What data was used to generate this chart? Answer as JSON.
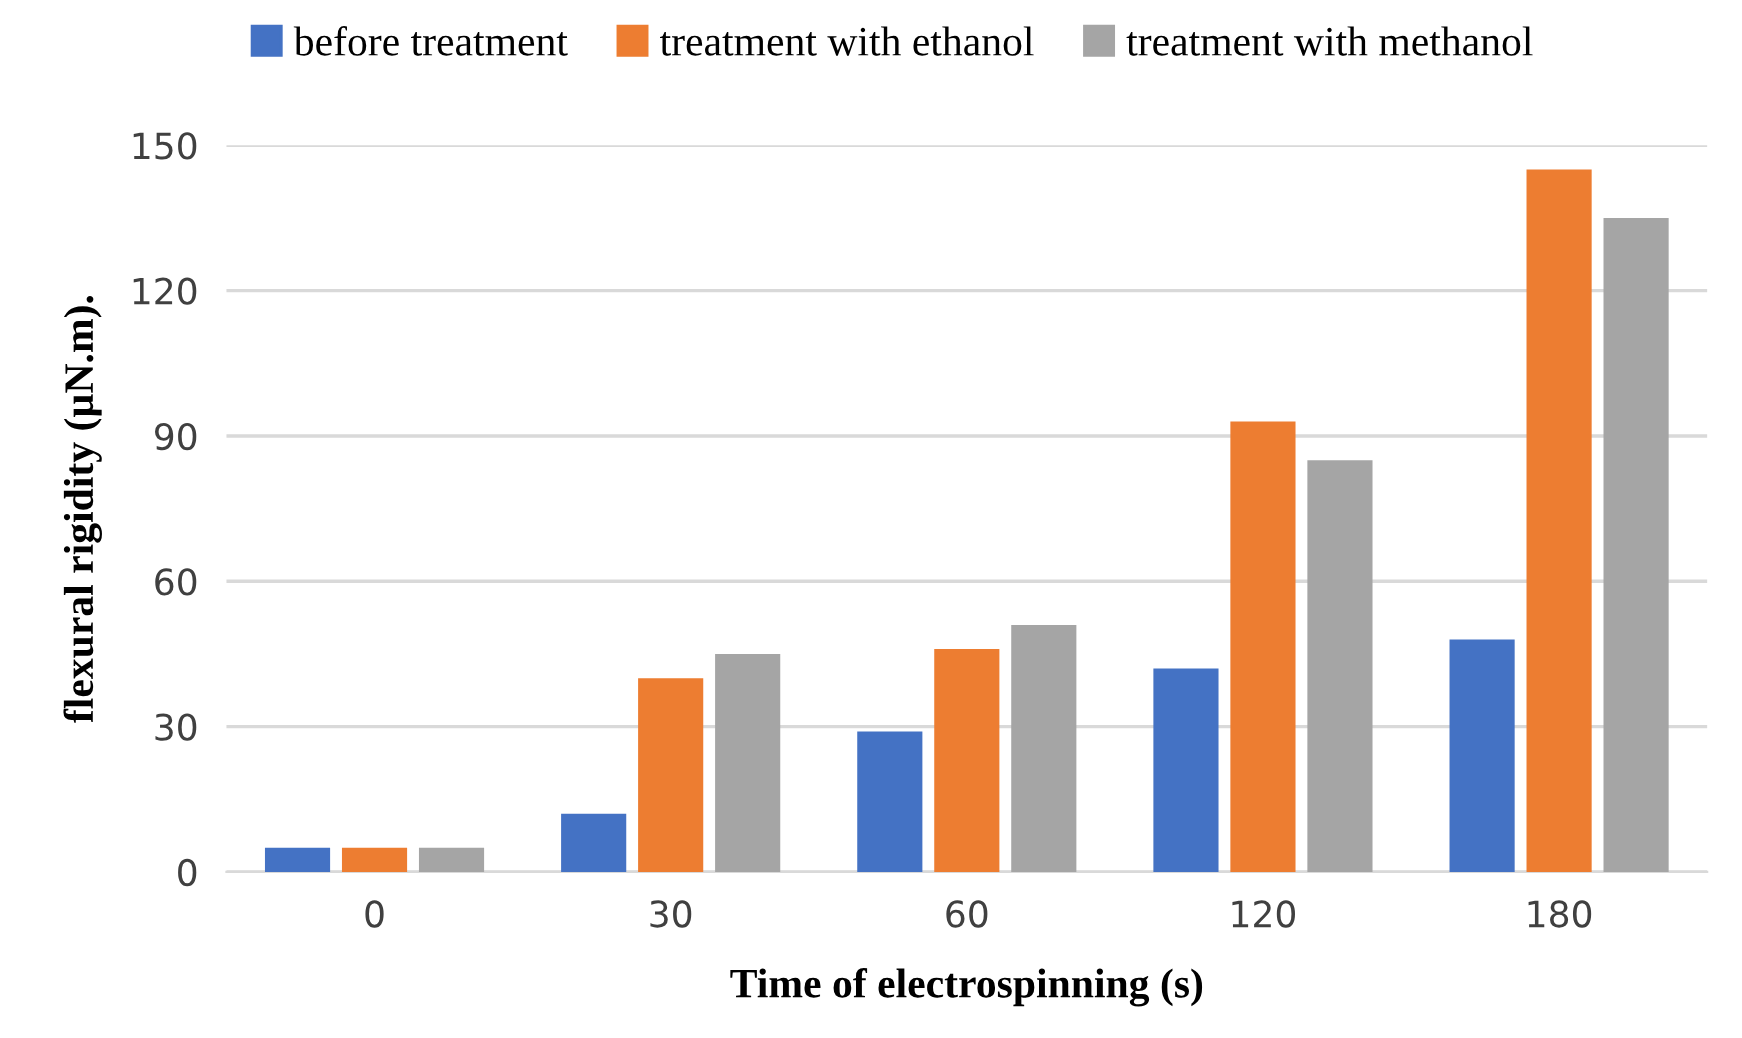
{
  "chart_data": {
    "type": "bar",
    "xlabel": "Time of electrospinning (s)",
    "ylabel": "flexural rigidity (µN.m).",
    "categories": [
      "0",
      "30",
      "60",
      "120",
      "180"
    ],
    "series": [
      {
        "name": "before treatment",
        "color": "#4472c4",
        "values": [
          5,
          12,
          29,
          42,
          48
        ]
      },
      {
        "name": "treatment with ethanol",
        "color": "#ed7d31",
        "values": [
          5,
          40,
          46,
          93,
          145
        ]
      },
      {
        "name": "treatment with methanol",
        "color": "#a5a5a5",
        "values": [
          5,
          45,
          51,
          85,
          135
        ]
      }
    ],
    "ylim": [
      0,
      150
    ],
    "yticks": [
      0,
      30,
      60,
      90,
      120,
      150
    ],
    "grid": "y",
    "legend": "top"
  }
}
